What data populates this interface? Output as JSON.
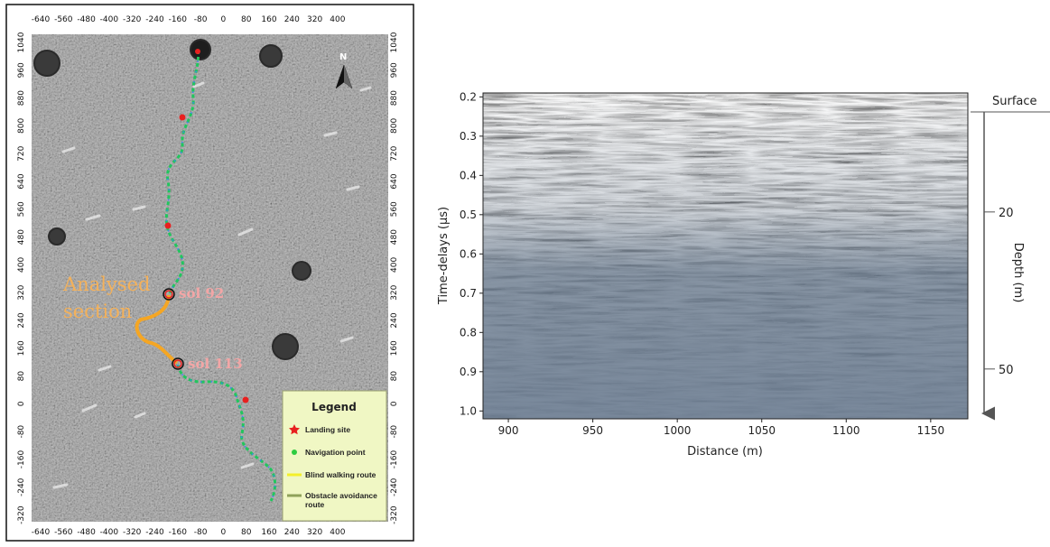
{
  "map": {
    "north_label": "N",
    "top_ticks": [
      "-640",
      "-560",
      "-480",
      "-400",
      "-320",
      "-240",
      "-160",
      "-80",
      "0",
      "80",
      "160",
      "240",
      "320",
      "400"
    ],
    "bottom_ticks": [
      "-640",
      "-560",
      "-480",
      "-400",
      "-320",
      "-240",
      "-160",
      "-80",
      "0",
      "80",
      "160",
      "240",
      "320",
      "400"
    ],
    "left_ticks": [
      "1040",
      "960",
      "880",
      "800",
      "720",
      "640",
      "560",
      "480",
      "400",
      "320",
      "240",
      "160",
      "80",
      "0",
      "-80",
      "-160",
      "-240",
      "-320"
    ],
    "right_ticks": [
      "1040",
      "960",
      "880",
      "800",
      "720",
      "640",
      "560",
      "480",
      "400",
      "320",
      "240",
      "160",
      "80",
      "0",
      "-80",
      "-160",
      "-240",
      "-320"
    ],
    "annotation_line1": "Analysed",
    "annotation_line2": "section",
    "sol_start_label": "sol 92",
    "sol_end_label": "sol 113",
    "legend": {
      "title": "Legend",
      "items": [
        {
          "label": "Landing site",
          "color": "#e8201f"
        },
        {
          "label": "Navigation point",
          "color": "#2ecc40"
        },
        {
          "label": "Blind walking route",
          "color": "#f4ef2a"
        },
        {
          "label": "Obstacle avoidance",
          "label2": "route",
          "color": "#8fa25a"
        }
      ]
    },
    "colors": {
      "route": "#22c55e",
      "navigation_points": "#3b82f6",
      "landing": "#e8201f",
      "analysed": "#f5a623",
      "annotation_text": "#f4b15a",
      "sol_text": "#f3a6a6",
      "legend_bg": "#f0f7c4"
    }
  },
  "chart_data": {
    "type": "heatmap",
    "description_visible": "radargram",
    "xlabel": "Distance (m)",
    "ylabel": "Time-delays (µs)",
    "x_ticks": [
      "900",
      "950",
      "1000",
      "1050",
      "1100",
      "1150"
    ],
    "x_tick_values": [
      900,
      950,
      1000,
      1050,
      1100,
      1150
    ],
    "xlim": [
      885,
      1172
    ],
    "y_ticks": [
      "0.2",
      "0.3",
      "0.4",
      "0.5",
      "0.6",
      "0.7",
      "0.8",
      "0.9",
      "1.0"
    ],
    "y_tick_values": [
      0.2,
      0.3,
      0.4,
      0.5,
      0.6,
      0.7,
      0.8,
      0.9,
      1.0
    ],
    "ylim": [
      0.19,
      1.02
    ],
    "y_inverted": true,
    "secondary_axis": {
      "label": "Depth (m)",
      "top_label": "Surface",
      "ticks": [
        "20",
        "50"
      ],
      "tick_times": [
        0.5,
        0.9
      ]
    }
  }
}
